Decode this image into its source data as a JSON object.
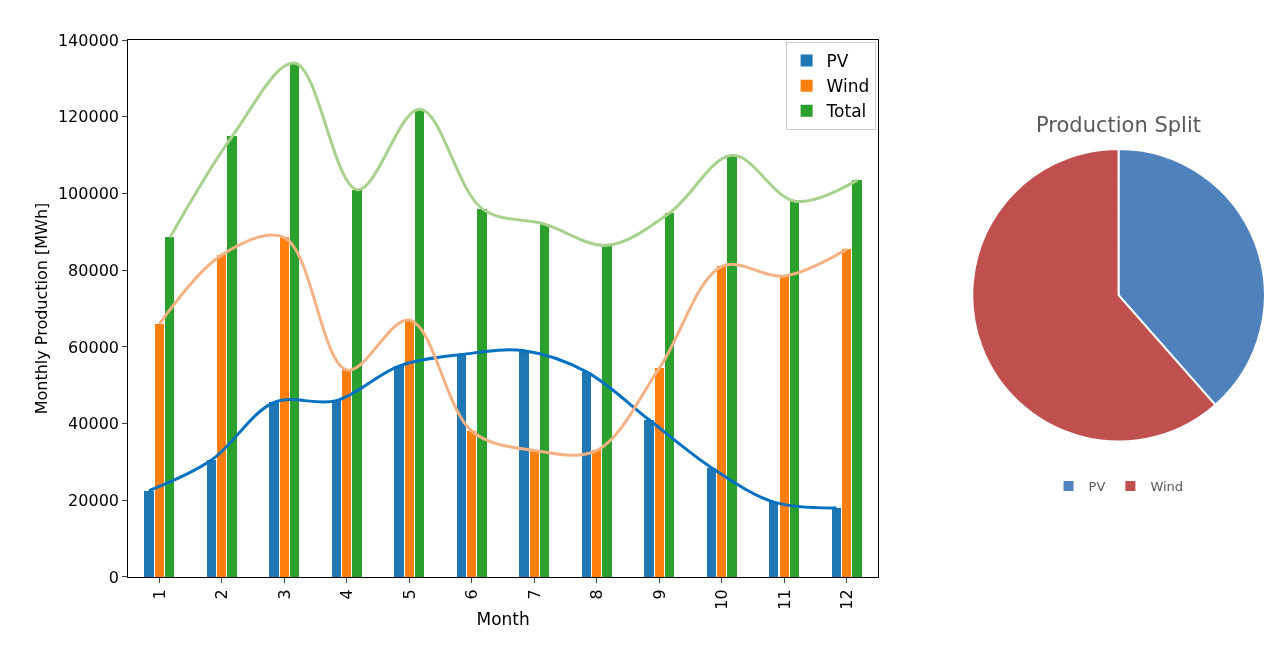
{
  "chart_data": [
    {
      "type": "bar",
      "xlabel": "Month",
      "ylabel": "Monthly Production [MWh]",
      "categories": [
        "1",
        "2",
        "3",
        "4",
        "5",
        "6",
        "7",
        "8",
        "9",
        "10",
        "11",
        "12"
      ],
      "series": [
        {
          "name": "PV",
          "color": "#1f77b4",
          "values": [
            22500,
            30500,
            45500,
            46000,
            55000,
            58000,
            59000,
            53500,
            41000,
            28500,
            19500,
            18000
          ]
        },
        {
          "name": "Wind",
          "color": "#ff7f0e",
          "values": [
            66000,
            84000,
            88500,
            54000,
            67000,
            38000,
            33000,
            33000,
            54500,
            81000,
            78500,
            85500
          ]
        },
        {
          "name": "Total",
          "color": "#2ca02c",
          "values": [
            88500,
            115000,
            134000,
            101000,
            122000,
            96000,
            92000,
            86500,
            95000,
            110000,
            98000,
            103500
          ]
        },
        {
          "type": "line",
          "color": "#0070c0",
          "values": [
            22500,
            30500,
            45500,
            46000,
            55000,
            58000,
            59000,
            53500,
            41000,
            28500,
            19500,
            18000
          ]
        },
        {
          "type": "line",
          "color": "#f4b183",
          "values": [
            66000,
            84000,
            88500,
            54000,
            67000,
            38000,
            33000,
            33000,
            54500,
            81000,
            78500,
            85500
          ]
        },
        {
          "type": "line",
          "color": "#a9d18e",
          "values": [
            88500,
            115000,
            134000,
            101000,
            122000,
            96000,
            92000,
            86500,
            95000,
            110000,
            98000,
            103500
          ]
        }
      ],
      "ylim": [
        0,
        140000
      ],
      "yticks": [
        0,
        20000,
        40000,
        60000,
        80000,
        100000,
        120000,
        140000
      ],
      "legend": "top right"
    },
    {
      "type": "pie",
      "title": "Production Split",
      "categories": [
        "PV",
        "Wind"
      ],
      "values": [
        38.5,
        61.5
      ],
      "colors": [
        "#4f81bd",
        "#c0504d"
      ],
      "legend": "bottom"
    }
  ]
}
